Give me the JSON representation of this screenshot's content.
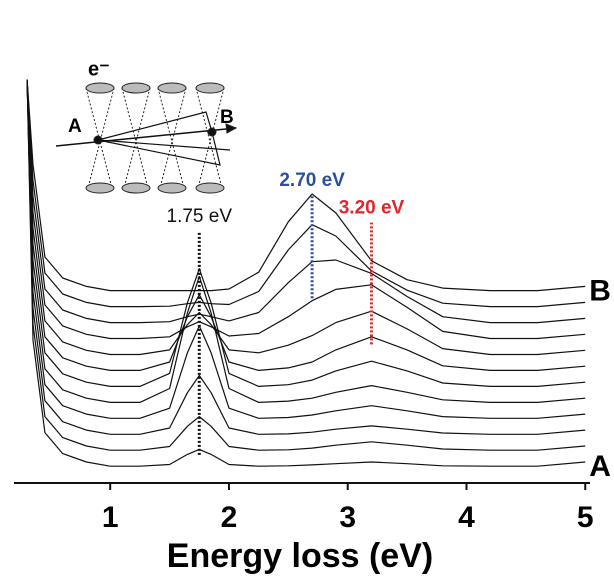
{
  "chart_data": {
    "type": "line",
    "xlabel": "Energy loss (eV)",
    "x": [
      0.3,
      0.35,
      0.45,
      0.6,
      0.8,
      1,
      1.25,
      1.5,
      1.65,
      1.75,
      1.85,
      2,
      2.25,
      2.5,
      2.7,
      2.9,
      3.2,
      3.5,
      3.8,
      4.2,
      4.6,
      5
    ],
    "xlim": [
      0.19,
      5.04
    ],
    "xticks": [
      1,
      2,
      3,
      4,
      5
    ],
    "ylim": [
      0,
      100
    ],
    "color": "#111111",
    "series": [
      {
        "name": "A",
        "values": [
          96,
          34,
          12,
          7,
          5,
          4,
          4,
          4.4,
          6.8,
          8,
          6.8,
          4.4,
          4,
          4.1,
          4.3,
          4.6,
          5,
          4.6,
          4.1,
          4,
          4,
          5
        ]
      },
      {
        "values": [
          96,
          37.8,
          15.8,
          10.8,
          8.8,
          7.8,
          7.8,
          8.7,
          13.5,
          15.8,
          13.5,
          8.7,
          7.8,
          7.9,
          8.3,
          9,
          9.8,
          9,
          8.1,
          7.8,
          7.8,
          8.8
        ]
      },
      {
        "values": [
          96,
          41.6,
          19.6,
          14.6,
          12.6,
          11.6,
          11.6,
          13.1,
          21.5,
          25.6,
          21.5,
          13.1,
          11.6,
          11.7,
          12.1,
          12.8,
          13.6,
          12.8,
          11.9,
          11.6,
          11.6,
          12.6
        ]
      },
      {
        "values": [
          96,
          45.4,
          23.4,
          18.4,
          16.4,
          15.4,
          15.4,
          17.8,
          31,
          37.4,
          31,
          17.8,
          15.4,
          15.6,
          16.2,
          17.2,
          18.4,
          17.2,
          15.8,
          15.4,
          15.4,
          16.4
        ]
      },
      {
        "values": [
          96,
          49.2,
          27.2,
          22.2,
          20.2,
          19.2,
          19.2,
          22.5,
          40.5,
          49.2,
          40.5,
          22.5,
          19.2,
          19.5,
          20.2,
          21.6,
          23.2,
          21.6,
          19.8,
          19.2,
          19.2,
          20.2
        ]
      },
      {
        "values": [
          96,
          53,
          31,
          26,
          24,
          23,
          23,
          26.1,
          42.9,
          51,
          42.9,
          26.1,
          23,
          23.4,
          24.5,
          26.7,
          29,
          26.7,
          23.8,
          23,
          23,
          24
        ]
      },
      {
        "values": [
          96,
          56.8,
          34.8,
          29.8,
          27.8,
          26.8,
          26.8,
          28.8,
          39.6,
          44.8,
          39.6,
          28.8,
          26.8,
          27.4,
          28.8,
          31.7,
          34.8,
          31.7,
          27.9,
          26.8,
          26.8,
          27.8
        ]
      },
      {
        "values": [
          96,
          60.6,
          38.6,
          33.6,
          31.6,
          30.6,
          30.6,
          31.7,
          37.7,
          40.6,
          37.7,
          31.7,
          31,
          32.8,
          35.1,
          38.2,
          40.9,
          36.7,
          32,
          30.6,
          30.6,
          31.6
        ]
      },
      {
        "values": [
          96,
          64.4,
          42.4,
          37.4,
          35.4,
          34.4,
          34.4,
          34.8,
          37.2,
          38.4,
          37.2,
          35,
          35.6,
          39.6,
          43.4,
          46.1,
          47.2,
          41.8,
          36.1,
          34.4,
          34.4,
          35.4
        ]
      },
      {
        "values": [
          96,
          68.2,
          46.2,
          41.2,
          39.2,
          38.2,
          38.2,
          38.4,
          39.6,
          40.2,
          39.6,
          38.6,
          40.6,
          47.7,
          52.7,
          53.1,
          49.9,
          44.4,
          39.6,
          38.2,
          38.2,
          39.2
        ]
      },
      {
        "values": [
          96,
          72,
          50,
          45,
          43,
          42,
          42,
          42.1,
          42.7,
          43,
          42.7,
          42.5,
          45.6,
          55.5,
          61.5,
          58.8,
          50.5,
          45.9,
          42.8,
          42,
          42,
          43
        ]
      },
      {
        "name": "B",
        "values": [
          96,
          75.8,
          53.8,
          48.8,
          46.8,
          45.8,
          45.8,
          45.8,
          45.8,
          45.8,
          45.8,
          46.2,
          50.2,
          62.2,
          68.8,
          64.3,
          52.9,
          48.4,
          46.4,
          45.8,
          45.8,
          46.8
        ]
      }
    ],
    "markers": [
      {
        "label": "1.75 eV",
        "x": 1.75,
        "y_range": [
          6.7,
          60
        ],
        "color": "#111111"
      },
      {
        "label": "2.70 eV",
        "x": 2.7,
        "y_range": [
          44,
          68.6
        ],
        "color": "#2a4fa0"
      },
      {
        "label": "3.20 eV",
        "x": 3.2,
        "y_range": [
          33,
          62
        ],
        "color": "#e0252b"
      }
    ],
    "inset": {
      "beam": "e⁻",
      "point_a": "A",
      "point_b": "B"
    }
  }
}
